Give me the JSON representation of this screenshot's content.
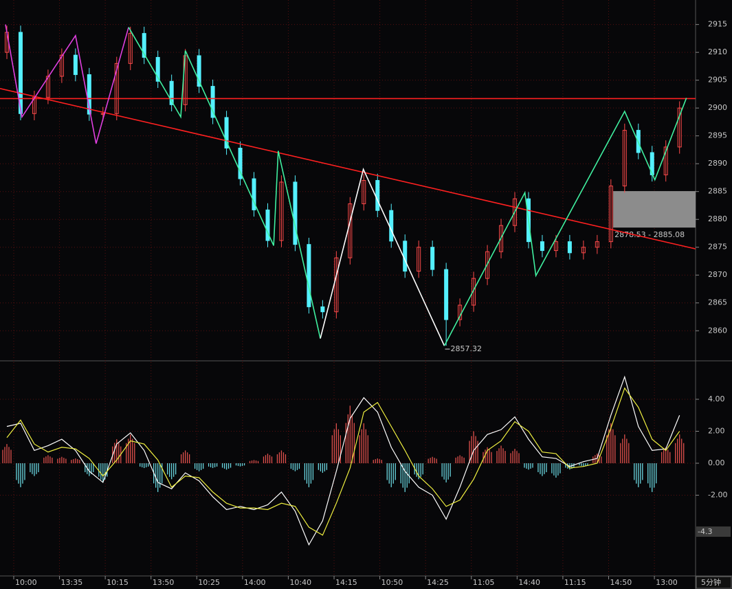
{
  "chart_data": [
    {
      "type": "candlestick",
      "xlim": [
        0,
        152
      ],
      "ylim": [
        2854.6,
        2919.4
      ],
      "yticks": [
        2915,
        2910,
        2905,
        2900,
        2895,
        2890,
        2885,
        2880,
        2875,
        2870,
        2865,
        2860
      ],
      "up_color": "#ff4a4a",
      "down_color": "#54f0ff",
      "x": [
        1.5,
        4.5,
        7.5,
        10.5,
        13.5,
        16.5,
        19.5,
        22.5,
        25.5,
        28.5,
        31.5,
        34.5,
        37.5,
        40.5,
        43.5,
        46.5,
        49.5,
        52.5,
        55.5,
        58.5,
        61.5,
        64.5,
        67.5,
        70.5,
        73.5,
        76.5,
        79.5,
        82.5,
        85.5,
        88.5,
        91.5,
        94.5,
        97.5,
        100.5,
        103.5,
        106.5,
        109.5,
        112.5,
        115.5,
        118.5,
        121.5,
        124.5,
        127.5,
        130.5,
        133.5,
        136.5,
        139.5,
        142.5,
        145.5,
        148.5
      ],
      "open": [
        2910,
        2913.6,
        2899,
        2901.9,
        2905.7,
        2909.5,
        2906,
        2898.9,
        2899,
        2908,
        2913.4,
        2909.1,
        2904.8,
        2900.6,
        2909.4,
        2903.9,
        2898.3,
        2892.8,
        2887.3,
        2881.7,
        2876.2,
        2886.7,
        2875.5,
        2864.3,
        2863.4,
        2873.1,
        2882.8,
        2887,
        2881.6,
        2876.1,
        2870.7,
        2875,
        2871,
        2862,
        2864.6,
        2869.4,
        2874.2,
        2878.9,
        2883.7,
        2876,
        2874.4,
        2876,
        2874,
        2875,
        2876,
        2886,
        2896,
        2892,
        2888,
        2893
      ],
      "high": [
        2914.8,
        2914.8,
        2903.1,
        2906.9,
        2910.7,
        2910.7,
        2907.2,
        2900.2,
        2909.2,
        2914.6,
        2914.6,
        2910.3,
        2906,
        2910.6,
        2910.6,
        2905.1,
        2899.5,
        2894,
        2888.5,
        2882.9,
        2887.9,
        2887.9,
        2876.7,
        2865.5,
        2874.3,
        2884,
        2888.2,
        2888.2,
        2882.8,
        2877.3,
        2876.2,
        2876.2,
        2872.2,
        2865.8,
        2870.6,
        2875.4,
        2880.1,
        2884.9,
        2884.9,
        2877.2,
        2877.2,
        2877.2,
        2876.2,
        2877.2,
        2887.2,
        2897.2,
        2897.2,
        2893.2,
        2894.2,
        2901.2
      ],
      "low": [
        2908.8,
        2897.8,
        2897.8,
        2900.7,
        2904.5,
        2904.8,
        2897.7,
        2897.7,
        2897.8,
        2906.8,
        2907.9,
        2903.6,
        2899.4,
        2899.4,
        2902.7,
        2897.1,
        2891.6,
        2886.1,
        2880.5,
        2875,
        2875,
        2874.3,
        2863.1,
        2862.2,
        2862.2,
        2871.9,
        2881.6,
        2880.4,
        2874.9,
        2869.5,
        2869.5,
        2869.8,
        2857.32,
        2860.8,
        2863.4,
        2868.2,
        2873,
        2877.7,
        2874.8,
        2873.2,
        2873.2,
        2872.8,
        2872.8,
        2873.8,
        2874.8,
        2884.8,
        2890.8,
        2886.8,
        2886.8,
        2891.8
      ],
      "close": [
        2913.6,
        2899,
        2901.9,
        2905.7,
        2909.5,
        2906,
        2898.9,
        2899,
        2908,
        2913.4,
        2909.1,
        2904.8,
        2900.6,
        2909.4,
        2903.9,
        2898.3,
        2892.8,
        2887.3,
        2881.7,
        2876.2,
        2886.7,
        2875.5,
        2864.3,
        2863.4,
        2873.1,
        2882.8,
        2887,
        2881.6,
        2876.1,
        2870.7,
        2875,
        2871,
        2862,
        2864.6,
        2869.4,
        2874.2,
        2878.9,
        2883.7,
        2876,
        2874.4,
        2876,
        2874,
        2875,
        2876,
        2886,
        2896,
        2892,
        2888,
        2893,
        2900
      ],
      "zigzag": [
        {
          "color": "#e040e0",
          "x": [
            1.2,
            4.8,
            16.5,
            21,
            28.1
          ],
          "values": [
            2915,
            2898.4,
            2913,
            2893.6,
            2914.5
          ]
        },
        {
          "color": "#40f0a0",
          "x": [
            28.1,
            39.5,
            40.5,
            59.8,
            60.8,
            70
          ],
          "values": [
            2914.5,
            2898.4,
            2910.3,
            2875.3,
            2892.3,
            2858.6
          ]
        },
        {
          "color": "#ffffff",
          "x": [
            70,
            79.4,
            97.1
          ],
          "values": [
            2858.6,
            2889,
            2857.3
          ]
        },
        {
          "color": "#40f0a0",
          "x": [
            97.1,
            114.7,
            117.1,
            136.5,
            143.1,
            150
          ],
          "values": [
            2857.3,
            2884.8,
            2869.9,
            2899.4,
            2887.1,
            2901.8
          ]
        }
      ],
      "lines": [
        {
          "color": "#ff2020",
          "x": [
            0,
            152
          ],
          "values": [
            2903.5,
            2874.7
          ]
        },
        {
          "color": "#ff2020",
          "x": [
            0,
            152
          ],
          "values": [
            2901.7,
            2901.7
          ]
        }
      ],
      "zone": {
        "x": [
          134,
          152
        ],
        "low": 2878.53,
        "high": 2885.08,
        "label": "2878.53 - 2885.08"
      },
      "low_mark": {
        "x": 97.1,
        "value": 2857.32
      }
    },
    {
      "type": "macd",
      "xlim": [
        0,
        152
      ],
      "ylim": [
        -7.05,
        6.32
      ],
      "yticks": [
        {
          "value": 4,
          "label": "4.00"
        },
        {
          "value": 2,
          "label": "2.00"
        },
        {
          "value": 0,
          "label": "0.00"
        },
        {
          "value": -2,
          "label": "-2.00"
        }
      ],
      "current_value": -4.3,
      "xticks": [
        {
          "value": 3,
          "label": "10:00"
        },
        {
          "value": 13,
          "label": "13:35"
        },
        {
          "value": 23,
          "label": "10:15"
        },
        {
          "value": 33,
          "label": "13:50"
        },
        {
          "value": 43,
          "label": "10:25"
        },
        {
          "value": 53,
          "label": "14:00"
        },
        {
          "value": 63,
          "label": "10:40"
        },
        {
          "value": 73,
          "label": "14:15"
        },
        {
          "value": 83,
          "label": "10:50"
        },
        {
          "value": 93,
          "label": "14:25"
        },
        {
          "value": 103,
          "label": "11:05"
        },
        {
          "value": 113,
          "label": "14:40"
        },
        {
          "value": 123,
          "label": "11:15"
        },
        {
          "value": 133,
          "label": "14:50"
        },
        {
          "value": 143,
          "label": "13:00"
        }
      ],
      "period": "5分钟",
      "x": [
        1.5,
        4.5,
        7.5,
        10.5,
        13.5,
        16.5,
        19.5,
        22.5,
        25.5,
        28.5,
        31.5,
        34.5,
        37.5,
        40.5,
        43.5,
        46.5,
        49.5,
        52.5,
        55.5,
        58.5,
        61.5,
        64.5,
        67.5,
        70.5,
        73.5,
        76.5,
        79.5,
        82.5,
        85.5,
        88.5,
        91.5,
        94.5,
        97.5,
        100.5,
        103.5,
        106.5,
        109.5,
        112.5,
        115.5,
        118.5,
        121.5,
        124.5,
        127.5,
        130.5,
        133.5,
        136.5,
        139.5,
        142.5,
        145.5,
        148.5
      ],
      "histogram": {
        "up_color": "#e0504c",
        "down_color": "#6ad6e0",
        "values": [
          1.2,
          -1.5,
          -0.8,
          0.5,
          0.4,
          0.3,
          -0.8,
          -1.2,
          1.5,
          1.8,
          -0.3,
          -1.8,
          -1.0,
          0.8,
          -0.5,
          -0.3,
          -0.4,
          -0.2,
          0.2,
          0.6,
          0.8,
          -0.5,
          -1.5,
          -0.6,
          2.5,
          3.6,
          2.5,
          0.3,
          -1.5,
          -1.8,
          -1.0,
          0.4,
          -1.2,
          0.5,
          2.0,
          1.0,
          1.1,
          0.9,
          -0.4,
          -0.8,
          -0.9,
          -0.4,
          -0.2,
          0.6,
          2.5,
          1.8,
          -1.5,
          -1.8,
          1.0,
          1.8
        ]
      },
      "series": [
        {
          "color": "#ffffff",
          "values": [
            2.3,
            2.5,
            0.8,
            1.1,
            1.5,
            0.8,
            -0.5,
            -1.2,
            1.2,
            1.9,
            0.8,
            -1.2,
            -1.6,
            -0.6,
            -1.1,
            -2.1,
            -2.9,
            -2.7,
            -2.9,
            -2.6,
            -1.8,
            -3.0,
            -5.1,
            -3.6,
            -0.5,
            2.8,
            4.1,
            3.2,
            1.0,
            -0.5,
            -1.5,
            -2.0,
            -3.5,
            -1.5,
            0.8,
            1.8,
            2.1,
            2.9,
            1.5,
            0.4,
            0.3,
            -0.2,
            0.1,
            0.3,
            3.0,
            5.4,
            2.3,
            0.8,
            0.9,
            3.0
          ]
        },
        {
          "color": "#f0f040",
          "values": [
            1.6,
            2.7,
            1.2,
            0.7,
            1.0,
            0.9,
            0.3,
            -0.8,
            0.2,
            1.4,
            1.2,
            0.2,
            -1.5,
            -0.8,
            -0.9,
            -1.8,
            -2.5,
            -2.8,
            -2.8,
            -2.9,
            -2.5,
            -2.7,
            -4.0,
            -4.5,
            -2.5,
            -0.3,
            3.2,
            3.8,
            2.3,
            0.8,
            -0.8,
            -1.6,
            -2.7,
            -2.3,
            -1.0,
            0.8,
            1.4,
            2.6,
            2.0,
            0.7,
            0.6,
            -0.3,
            -0.2,
            0.0,
            2.2,
            4.7,
            3.5,
            1.5,
            0.8,
            2.0
          ]
        }
      ]
    }
  ]
}
